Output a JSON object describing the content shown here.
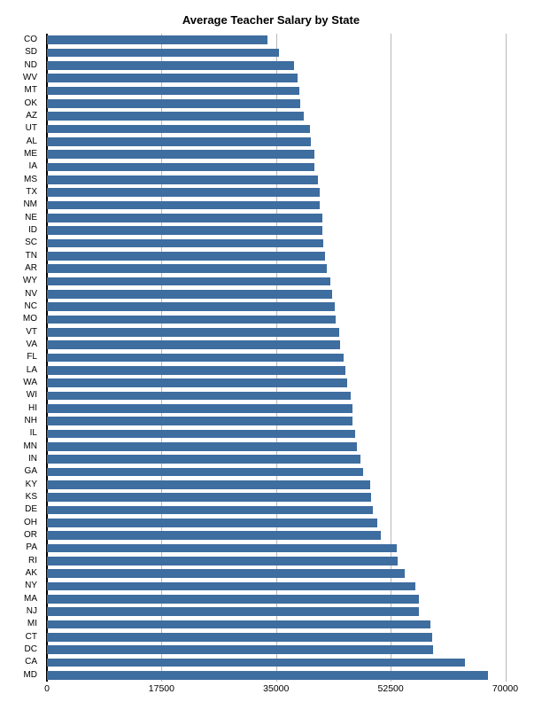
{
  "title": "Average Teacher Salary by State",
  "chart_data": {
    "type": "bar",
    "orientation": "horizontal",
    "title": "Average Teacher Salary by State",
    "xlabel": "",
    "ylabel": "",
    "xlim": [
      0,
      70000
    ],
    "xticks": [
      0,
      17500,
      35000,
      52500,
      70000
    ],
    "xtick_labels": [
      "0",
      "17500",
      "35000",
      "52500",
      "70000"
    ],
    "grid": true,
    "legend": "none",
    "sort_order": "ascending",
    "bar_color": "#3e6da0",
    "gridline_color": "#b9b9b9",
    "axis_color": "#000000",
    "categories": [
      "CO",
      "SD",
      "ND",
      "WV",
      "MT",
      "OK",
      "AZ",
      "UT",
      "AL",
      "ME",
      "IA",
      "MS",
      "TX",
      "NM",
      "NE",
      "ID",
      "SC",
      "TN",
      "AR",
      "WY",
      "NV",
      "NC",
      "MO",
      "VT",
      "VA",
      "FL",
      "LA",
      "WA",
      "WI",
      "HI",
      "NH",
      "IL",
      "MN",
      "IN",
      "GA",
      "KY",
      "KS",
      "DE",
      "OH",
      "OR",
      "PA",
      "RI",
      "AK",
      "NY",
      "MA",
      "NJ",
      "MI",
      "CT",
      "DC",
      "CA",
      "MD"
    ],
    "values": [
      33700,
      35400,
      37700,
      38300,
      38500,
      38700,
      39200,
      40200,
      40300,
      40800,
      40900,
      41400,
      41600,
      41700,
      42000,
      42100,
      42200,
      42500,
      42800,
      43300,
      43500,
      44000,
      44100,
      44600,
      44800,
      45300,
      45600,
      45800,
      46400,
      46600,
      46700,
      47100,
      47400,
      47900,
      48300,
      49400,
      49500,
      49800,
      50400,
      51000,
      53400,
      53500,
      54700,
      56300,
      56800,
      56800,
      58600,
      58800,
      59000,
      63800,
      67400
    ]
  }
}
